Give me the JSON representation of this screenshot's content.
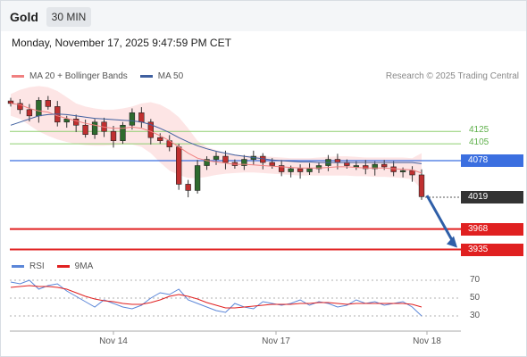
{
  "header": {
    "symbol": "Gold",
    "timeframe": "30 MIN"
  },
  "datetime": "Monday, November 17, 2025 9:47:59 PM CET",
  "research": "Research © 2025 Trading Central",
  "colors": {
    "ma20": "#f08080",
    "ma50": "#3f5f9f",
    "bollinger_fill": "#fde0e0",
    "resistance": "#8fcf70",
    "pivot": "#3b6fe0",
    "support": "#e02020",
    "last_price_bg": "#333333",
    "arrow": "#2f5fa8",
    "rsi": "#5b86d8",
    "rsi_ma": "#e02020",
    "candle_up": "#2e6b2e",
    "candle_down": "#c03030"
  },
  "legend": {
    "price": [
      {
        "label": "MA 20 + Bollinger Bands",
        "color": "#f08080"
      },
      {
        "label": "MA 50",
        "color": "#3f5f9f"
      }
    ],
    "rsi": [
      {
        "label": "RSI",
        "color": "#5b86d8"
      },
      {
        "label": "9MA",
        "color": "#e02020"
      }
    ]
  },
  "chart_data": [
    {
      "type": "candlestick",
      "title": "Gold",
      "timeframe": "30 MIN",
      "ylim": [
        3920,
        4200
      ],
      "x_ticks": [
        "Nov 14",
        "Nov 17",
        "Nov 18"
      ],
      "levels": {
        "resistance": [
          4125,
          4105
        ],
        "pivot": 4078,
        "last": 4019,
        "support": [
          3968,
          3935
        ]
      },
      "close_path": [
        4170,
        4160,
        4150,
        4175,
        4165,
        4140,
        4145,
        4135,
        4120,
        4140,
        4125,
        4110,
        4135,
        4155,
        4140,
        4115,
        4110,
        4100,
        4040,
        4030,
        4070,
        4080,
        4085,
        4075,
        4070,
        4080,
        4085,
        4075,
        4070,
        4060,
        4065,
        4060,
        4065,
        4070,
        4080,
        4075,
        4070,
        4070,
        4065,
        4072,
        4068,
        4060,
        4062,
        4055,
        4020
      ],
      "ma20": [
        4170,
        4168,
        4162,
        4158,
        4156,
        4150,
        4146,
        4142,
        4138,
        4135,
        4132,
        4130,
        4130,
        4132,
        4130,
        4125,
        4118,
        4110,
        4100,
        4090,
        4082,
        4078,
        4076,
        4074,
        4072,
        4072,
        4071,
        4070,
        4069,
        4068,
        4067,
        4066,
        4066,
        4066,
        4067,
        4068,
        4068,
        4067,
        4066,
        4066,
        4066,
        4065,
        4064,
        4063,
        4058
      ],
      "ma50": [
        4135,
        4140,
        4145,
        4150,
        4152,
        4153,
        4152,
        4150,
        4148,
        4146,
        4145,
        4144,
        4143,
        4142,
        4140,
        4136,
        4130,
        4123,
        4115,
        4108,
        4102,
        4097,
        4093,
        4090,
        4087,
        4085,
        4083,
        4081,
        4079,
        4078,
        4077,
        4076,
        4076,
        4075,
        4075,
        4075,
        4075,
        4075,
        4075,
        4075,
        4075,
        4075,
        4075,
        4075,
        4073
      ],
      "bb_upper": [
        4185,
        4192,
        4196,
        4198,
        4196,
        4190,
        4180,
        4170,
        4165,
        4162,
        4160,
        4160,
        4162,
        4165,
        4170,
        4172,
        4168,
        4160,
        4148,
        4130,
        4110,
        4100,
        4095,
        4090,
        4088,
        4086,
        4086,
        4085,
        4084,
        4083,
        4082,
        4082,
        4082,
        4083,
        4084,
        4085,
        4085,
        4084,
        4083,
        4083,
        4083,
        4083,
        4083,
        4082,
        4090
      ],
      "bb_lower": [
        4150,
        4145,
        4135,
        4125,
        4118,
        4112,
        4108,
        4105,
        4103,
        4102,
        4102,
        4103,
        4104,
        4104,
        4100,
        4090,
        4075,
        4062,
        4055,
        4050,
        4050,
        4052,
        4055,
        4057,
        4058,
        4059,
        4059,
        4058,
        4057,
        4056,
        4055,
        4054,
        4054,
        4054,
        4054,
        4054,
        4054,
        4053,
        4053,
        4052,
        4052,
        4051,
        4050,
        4048,
        4032
      ]
    },
    {
      "type": "line",
      "title": "RSI",
      "ylim": [
        20,
        80
      ],
      "y_ticks": [
        70,
        50,
        30
      ],
      "rsi": [
        68,
        66,
        70,
        60,
        64,
        66,
        58,
        52,
        46,
        40,
        48,
        44,
        40,
        38,
        42,
        50,
        56,
        54,
        60,
        48,
        44,
        40,
        36,
        34,
        44,
        40,
        38,
        46,
        44,
        42,
        44,
        48,
        42,
        46,
        44,
        40,
        42,
        48,
        44,
        46,
        42,
        44,
        46,
        40,
        30
      ],
      "rsi_ma": [
        62,
        63,
        64,
        63,
        63,
        62,
        60,
        56,
        52,
        49,
        47,
        46,
        44,
        43,
        43,
        45,
        48,
        52,
        54,
        52,
        49,
        45,
        42,
        39,
        39,
        40,
        41,
        42,
        43,
        43,
        43,
        44,
        44,
        45,
        45,
        44,
        43,
        44,
        44,
        44,
        44,
        44,
        44,
        43,
        40
      ]
    }
  ]
}
